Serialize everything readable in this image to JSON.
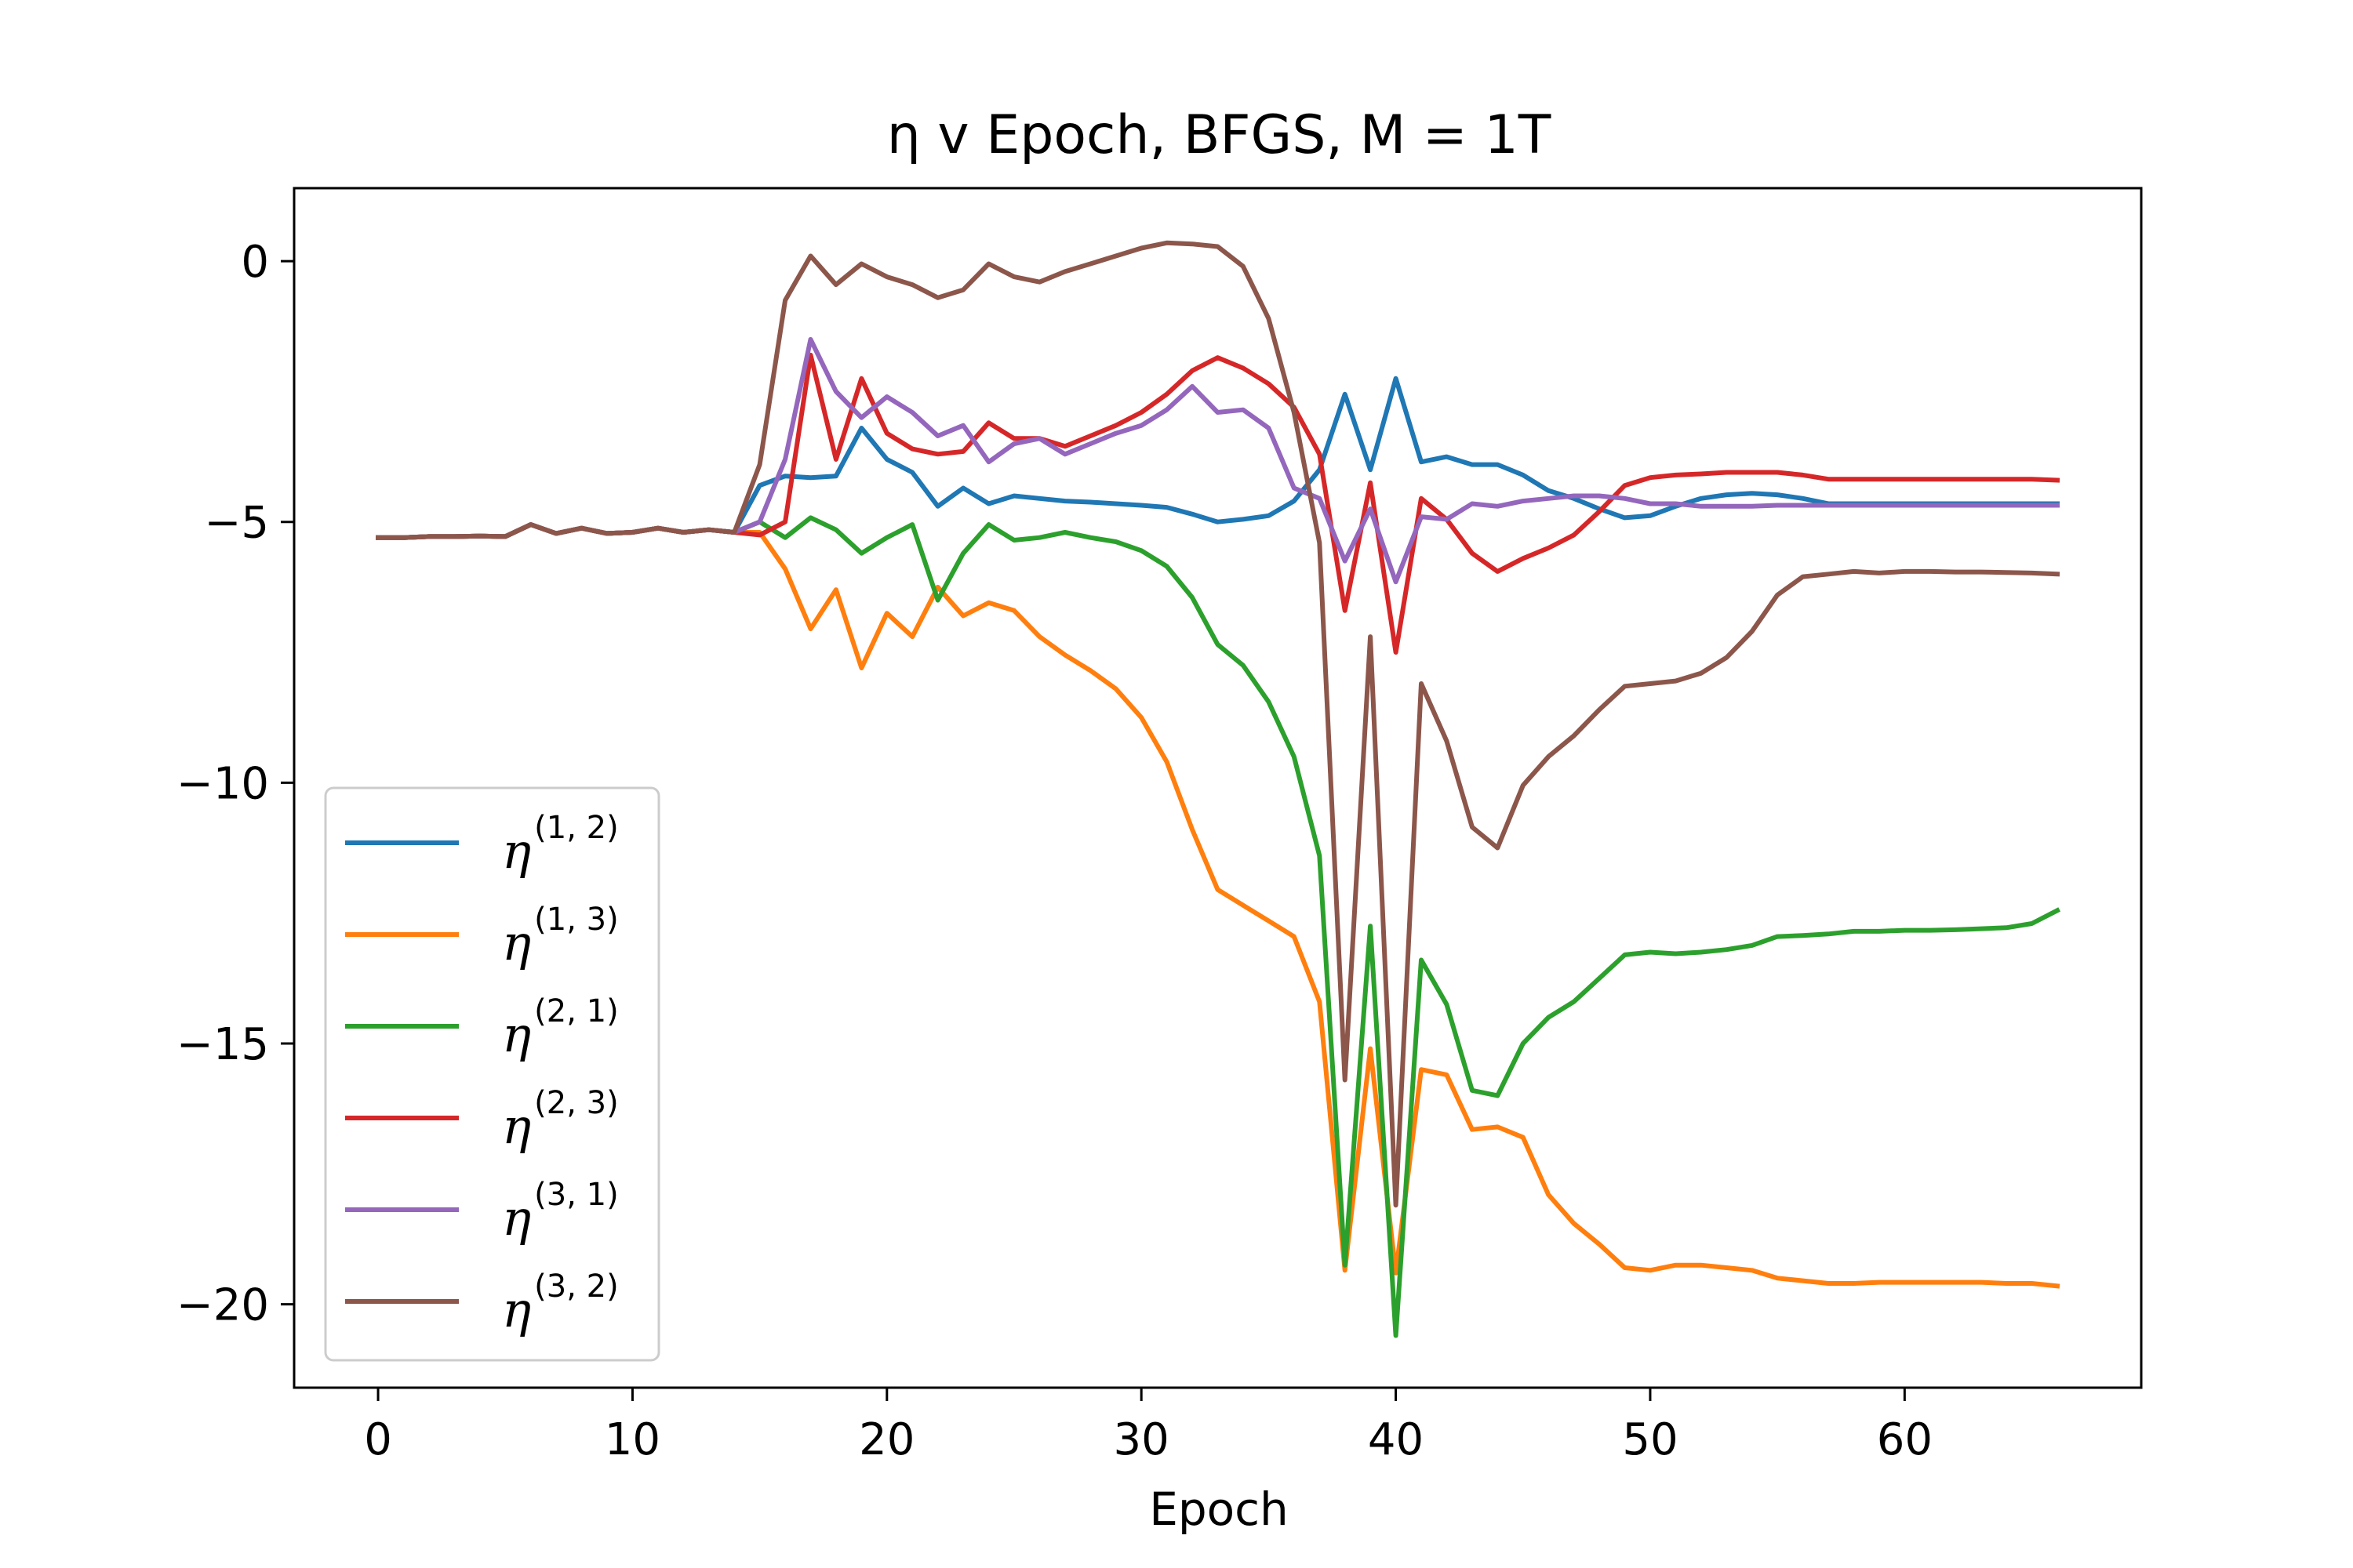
{
  "chart_data": {
    "type": "line",
    "title": "η v Epoch, BFGS, M = 1T",
    "xlabel": "Epoch",
    "ylabel": "",
    "xlim": [
      -3.3,
      69.3
    ],
    "ylim": [
      -21.6,
      1.4
    ],
    "xticks": [
      0,
      10,
      20,
      30,
      40,
      50,
      60
    ],
    "yticks": [
      0,
      -5,
      -10,
      -15,
      -20
    ],
    "xtick_labels": [
      "0",
      "10",
      "20",
      "30",
      "40",
      "50",
      "60"
    ],
    "ytick_labels": [
      "0",
      "−5",
      "−10",
      "−15",
      "−20"
    ],
    "grid": false,
    "legend_position": "lower-left",
    "x": [
      0,
      1,
      2,
      3,
      4,
      5,
      6,
      7,
      8,
      9,
      10,
      11,
      12,
      13,
      14,
      15,
      16,
      17,
      18,
      19,
      20,
      21,
      22,
      23,
      24,
      25,
      26,
      27,
      28,
      29,
      30,
      31,
      32,
      33,
      34,
      35,
      36,
      37,
      38,
      39,
      40,
      41,
      42,
      43,
      44,
      45,
      46,
      47,
      48,
      49,
      50,
      51,
      52,
      53,
      54,
      55,
      56,
      57,
      58,
      59,
      60,
      61,
      62,
      63,
      64,
      65,
      66
    ],
    "series": [
      {
        "name": "η",
        "sup": "(1, 2)",
        "color": "#1f77b4",
        "values": [
          -5.3,
          -5.3,
          -5.28,
          -5.28,
          -5.27,
          -5.28,
          -5.05,
          -5.22,
          -5.12,
          -5.22,
          -5.2,
          -5.12,
          -5.2,
          -5.15,
          -5.2,
          -4.3,
          -4.12,
          -4.15,
          -4.12,
          -3.2,
          -3.8,
          -4.05,
          -4.7,
          -4.35,
          -4.65,
          -4.5,
          -4.55,
          -4.6,
          -4.62,
          -4.65,
          -4.68,
          -4.72,
          -4.85,
          -5.0,
          -4.95,
          -4.88,
          -4.6,
          -4.0,
          -2.55,
          -4.0,
          -2.25,
          -3.85,
          -3.75,
          -3.9,
          -3.9,
          -4.1,
          -4.4,
          -4.55,
          -4.75,
          -4.92,
          -4.88,
          -4.7,
          -4.55,
          -4.48,
          -4.45,
          -4.48,
          -4.55,
          -4.65,
          -4.65,
          -4.65,
          -4.65,
          -4.65,
          -4.65,
          -4.65,
          -4.65,
          -4.65,
          -4.65
        ]
      },
      {
        "name": "η",
        "sup": "(1, 3)",
        "color": "#ff7f0e",
        "values": [
          -5.3,
          -5.3,
          -5.28,
          -5.28,
          -5.27,
          -5.28,
          -5.05,
          -5.22,
          -5.12,
          -5.22,
          -5.2,
          -5.12,
          -5.2,
          -5.15,
          -5.2,
          -5.2,
          -5.9,
          -7.05,
          -6.3,
          -7.8,
          -6.75,
          -7.2,
          -6.25,
          -6.8,
          -6.55,
          -6.7,
          -7.2,
          -7.55,
          -7.85,
          -8.2,
          -8.75,
          -9.6,
          -10.9,
          -12.05,
          -12.35,
          -12.65,
          -12.95,
          -14.2,
          -19.35,
          -15.1,
          -19.4,
          -15.5,
          -15.6,
          -16.65,
          -16.6,
          -16.8,
          -17.9,
          -18.45,
          -18.85,
          -19.3,
          -19.35,
          -19.25,
          -19.25,
          -19.3,
          -19.35,
          -19.5,
          -19.55,
          -19.6,
          -19.6,
          -19.58,
          -19.58,
          -19.58,
          -19.58,
          -19.58,
          -19.6,
          -19.6,
          -19.65
        ]
      },
      {
        "name": "η",
        "sup": "(2, 1)",
        "color": "#2ca02c",
        "values": [
          -5.3,
          -5.3,
          -5.28,
          -5.28,
          -5.27,
          -5.28,
          -5.05,
          -5.22,
          -5.12,
          -5.22,
          -5.2,
          -5.12,
          -5.2,
          -5.15,
          -5.2,
          -5.0,
          -5.3,
          -4.92,
          -5.15,
          -5.6,
          -5.3,
          -5.05,
          -6.5,
          -5.6,
          -5.05,
          -5.35,
          -5.3,
          -5.2,
          -5.3,
          -5.38,
          -5.55,
          -5.85,
          -6.45,
          -7.35,
          -7.75,
          -8.45,
          -9.5,
          -11.4,
          -19.25,
          -12.75,
          -20.6,
          -13.4,
          -14.25,
          -15.9,
          -16.0,
          -15.0,
          -14.5,
          -14.2,
          -13.75,
          -13.3,
          -13.25,
          -13.28,
          -13.25,
          -13.2,
          -13.12,
          -12.95,
          -12.93,
          -12.9,
          -12.85,
          -12.85,
          -12.83,
          -12.83,
          -12.82,
          -12.8,
          -12.78,
          -12.7,
          -12.45
        ]
      },
      {
        "name": "η",
        "sup": "(2, 3)",
        "color": "#d62728",
        "values": [
          -5.3,
          -5.3,
          -5.28,
          -5.28,
          -5.27,
          -5.28,
          -5.05,
          -5.22,
          -5.12,
          -5.22,
          -5.2,
          -5.12,
          -5.2,
          -5.15,
          -5.2,
          -5.25,
          -5.0,
          -1.8,
          -3.8,
          -2.25,
          -3.3,
          -3.6,
          -3.7,
          -3.65,
          -3.1,
          -3.4,
          -3.4,
          -3.55,
          -3.35,
          -3.15,
          -2.9,
          -2.55,
          -2.1,
          -1.85,
          -2.05,
          -2.35,
          -2.8,
          -3.7,
          -6.7,
          -4.25,
          -7.5,
          -4.55,
          -4.95,
          -5.6,
          -5.95,
          -5.7,
          -5.5,
          -5.25,
          -4.8,
          -4.3,
          -4.15,
          -4.1,
          -4.08,
          -4.05,
          -4.05,
          -4.05,
          -4.1,
          -4.18,
          -4.18,
          -4.18,
          -4.18,
          -4.18,
          -4.18,
          -4.18,
          -4.18,
          -4.18,
          -4.2
        ]
      },
      {
        "name": "η",
        "sup": "(3, 1)",
        "color": "#9467bd",
        "values": [
          -5.3,
          -5.3,
          -5.28,
          -5.28,
          -5.27,
          -5.28,
          -5.05,
          -5.22,
          -5.12,
          -5.22,
          -5.2,
          -5.12,
          -5.2,
          -5.15,
          -5.2,
          -5.0,
          -3.8,
          -1.5,
          -2.5,
          -3.0,
          -2.6,
          -2.9,
          -3.35,
          -3.15,
          -3.85,
          -3.5,
          -3.4,
          -3.7,
          -3.5,
          -3.3,
          -3.15,
          -2.85,
          -2.4,
          -2.9,
          -2.85,
          -3.2,
          -4.35,
          -4.55,
          -5.75,
          -4.75,
          -6.15,
          -4.9,
          -4.95,
          -4.65,
          -4.7,
          -4.6,
          -4.55,
          -4.5,
          -4.5,
          -4.55,
          -4.65,
          -4.65,
          -4.7,
          -4.7,
          -4.7,
          -4.68,
          -4.68,
          -4.68,
          -4.68,
          -4.68,
          -4.68,
          -4.68,
          -4.68,
          -4.68,
          -4.68,
          -4.68,
          -4.68
        ]
      },
      {
        "name": "η",
        "sup": "(3, 2)",
        "color": "#8c564b",
        "values": [
          -5.3,
          -5.3,
          -5.28,
          -5.28,
          -5.27,
          -5.28,
          -5.05,
          -5.22,
          -5.12,
          -5.22,
          -5.2,
          -5.12,
          -5.2,
          -5.15,
          -5.2,
          -3.9,
          -0.75,
          0.1,
          -0.45,
          -0.05,
          -0.3,
          -0.45,
          -0.7,
          -0.55,
          -0.05,
          -0.3,
          -0.4,
          -0.2,
          -0.05,
          0.1,
          0.25,
          0.35,
          0.33,
          0.28,
          -0.1,
          -1.1,
          -2.9,
          -5.4,
          -15.7,
          -7.2,
          -18.1,
          -8.1,
          -9.2,
          -10.85,
          -11.25,
          -10.05,
          -9.5,
          -9.1,
          -8.6,
          -8.15,
          -8.1,
          -8.05,
          -7.9,
          -7.6,
          -7.1,
          -6.4,
          -6.05,
          -6.0,
          -5.95,
          -5.98,
          -5.95,
          -5.95,
          -5.96,
          -5.96,
          -5.97,
          -5.98,
          -6.0
        ]
      }
    ]
  }
}
